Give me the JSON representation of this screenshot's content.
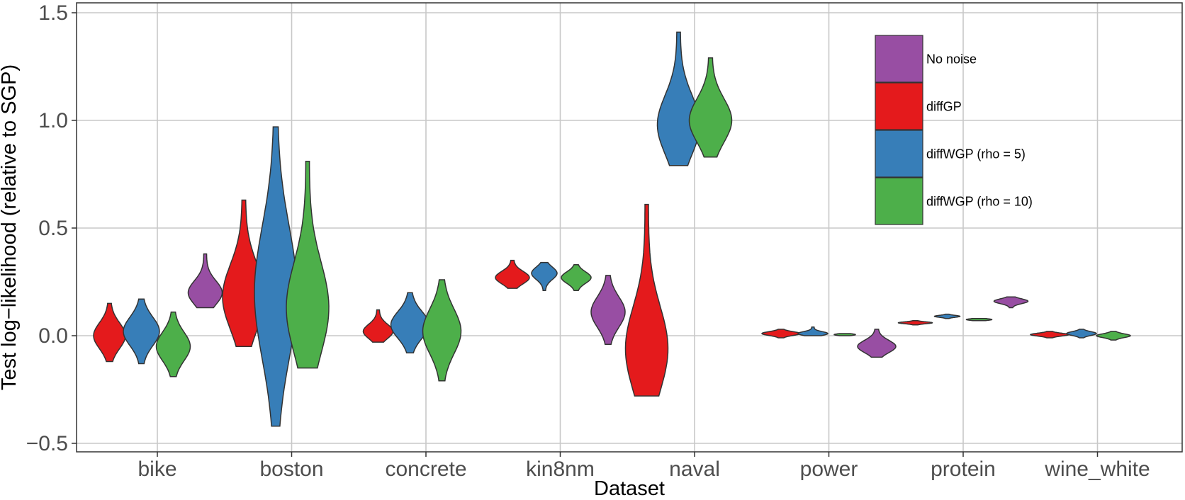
{
  "chart_data": {
    "type": "violin",
    "title": "",
    "xlabel": "Dataset",
    "ylabel": "Test log−likelihood (relative to SGP)",
    "ylim": [
      -0.55,
      1.55
    ],
    "yticks": [
      -0.5,
      0.0,
      0.5,
      1.0,
      1.5
    ],
    "ytick_labels": [
      "−0.5",
      "0.0",
      "0.5",
      "1.0",
      "1.5"
    ],
    "grid": true,
    "legend_position": "top-right",
    "categories": [
      "bike",
      "boston",
      "concrete",
      "kin8nm",
      "naval",
      "power",
      "protein",
      "wine_white"
    ],
    "series": [
      {
        "name": "diffGP",
        "color": "#e41a1c",
        "violins": [
          {
            "min": -0.12,
            "max": 0.15,
            "median": 0.0,
            "spread": 0.75
          },
          {
            "min": -0.05,
            "max": 0.63,
            "median": 0.18,
            "spread": 1.0
          },
          {
            "min": -0.03,
            "max": 0.12,
            "median": 0.02,
            "spread": 0.7
          },
          {
            "min": 0.22,
            "max": 0.35,
            "median": 0.27,
            "spread": 0.8
          },
          {
            "min": -0.28,
            "max": 0.61,
            "median": -0.06,
            "spread": 1.0
          },
          {
            "min": -0.01,
            "max": 0.03,
            "median": 0.01,
            "spread": 0.9
          },
          {
            "min": 0.05,
            "max": 0.07,
            "median": 0.06,
            "spread": 0.8
          },
          {
            "min": -0.01,
            "max": 0.02,
            "median": 0.005,
            "spread": 0.9
          }
        ]
      },
      {
        "name": "diffWGP (rho = 5)",
        "color": "#377eb8",
        "violins": [
          {
            "min": -0.13,
            "max": 0.17,
            "median": 0.02,
            "spread": 0.85
          },
          {
            "min": -0.42,
            "max": 0.97,
            "median": 0.2,
            "spread": 1.0
          },
          {
            "min": -0.08,
            "max": 0.2,
            "median": 0.05,
            "spread": 0.9
          },
          {
            "min": 0.21,
            "max": 0.34,
            "median": 0.29,
            "spread": 0.6
          },
          {
            "min": 0.79,
            "max": 1.41,
            "median": 0.98,
            "spread": 1.0
          },
          {
            "min": 0.0,
            "max": 0.04,
            "median": 0.01,
            "spread": 0.7
          },
          {
            "min": 0.08,
            "max": 0.1,
            "median": 0.09,
            "spread": 0.6
          },
          {
            "min": -0.01,
            "max": 0.03,
            "median": 0.01,
            "spread": 0.7
          }
        ]
      },
      {
        "name": "diffWGP (rho = 10)",
        "color": "#4daf4a",
        "violins": [
          {
            "min": -0.19,
            "max": 0.11,
            "median": -0.05,
            "spread": 0.8
          },
          {
            "min": -0.15,
            "max": 0.81,
            "median": 0.13,
            "spread": 1.0
          },
          {
            "min": -0.21,
            "max": 0.26,
            "median": 0.02,
            "spread": 0.9
          },
          {
            "min": 0.21,
            "max": 0.33,
            "median": 0.27,
            "spread": 0.7
          },
          {
            "min": 0.83,
            "max": 1.29,
            "median": 1.0,
            "spread": 1.0
          },
          {
            "min": 0.0,
            "max": 0.01,
            "median": 0.005,
            "spread": 0.5
          },
          {
            "min": 0.07,
            "max": 0.08,
            "median": 0.075,
            "spread": 0.6
          },
          {
            "min": -0.02,
            "max": 0.02,
            "median": 0.0,
            "spread": 0.8
          }
        ]
      },
      {
        "name": "No noise",
        "color": "#984ea3",
        "violins": [
          {
            "min": 0.13,
            "max": 0.38,
            "median": 0.2,
            "spread": 0.8
          },
          null,
          null,
          {
            "min": -0.04,
            "max": 0.28,
            "median": 0.11,
            "spread": 0.8
          },
          null,
          {
            "min": -0.1,
            "max": 0.03,
            "median": -0.05,
            "spread": 0.9
          },
          {
            "min": 0.13,
            "max": 0.18,
            "median": 0.16,
            "spread": 0.8
          },
          null
        ]
      }
    ]
  },
  "legend": {
    "items": [
      {
        "label": "No noise",
        "color": "#984ea3"
      },
      {
        "label": "diffGP",
        "color": "#e41a1c"
      },
      {
        "label": "diffWGP (rho = 5)",
        "color": "#377eb8"
      },
      {
        "label": "diffWGP (rho = 10)",
        "color": "#4daf4a"
      }
    ]
  }
}
